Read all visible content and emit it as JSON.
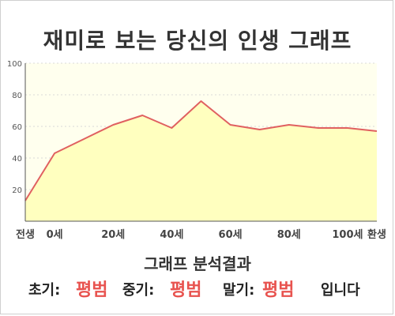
{
  "title": "재미로 보는 당신의 인생 그래프",
  "analysis_title": "그래프 분석결과",
  "result": {
    "early_label": "초기:",
    "early_value": "평범",
    "middle_label": "중기:",
    "middle_value": "평범",
    "late_label": "말기:",
    "late_value": "평범",
    "suffix": "입니다"
  },
  "colors": {
    "line": "#e06060",
    "fill": "#ffffbf",
    "plot_bg": "#ffffee",
    "accent_text": "#e8534f"
  },
  "chart_data": {
    "type": "area",
    "title": "재미로 보는 당신의 인생 그래프",
    "x": [
      -10,
      0,
      10,
      20,
      30,
      40,
      50,
      60,
      70,
      80,
      90,
      100,
      110
    ],
    "values": [
      13,
      43,
      52,
      61,
      67,
      59,
      76,
      61,
      58,
      61,
      59,
      59,
      57
    ],
    "x_tick_values": [
      -10,
      0,
      20,
      40,
      60,
      80,
      100,
      110
    ],
    "x_tick_labels": [
      "전생",
      "0세",
      "20세",
      "40세",
      "60세",
      "80세",
      "100세",
      "환생"
    ],
    "y_ticks": [
      20,
      40,
      60,
      80,
      100
    ],
    "xlim": [
      -10,
      110
    ],
    "ylim": [
      0,
      100
    ],
    "grid": true
  }
}
